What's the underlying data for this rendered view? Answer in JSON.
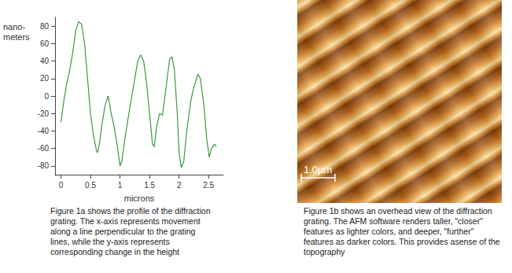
{
  "chart_data": {
    "type": "line",
    "ylabel": "nano-\nmeters",
    "xlabel": "microns",
    "x": [
      0,
      0.05,
      0.1,
      0.15,
      0.2,
      0.25,
      0.3,
      0.35,
      0.4,
      0.45,
      0.5,
      0.55,
      0.6,
      0.62,
      0.65,
      0.7,
      0.75,
      0.8,
      0.85,
      0.9,
      0.95,
      1.0,
      1.03,
      1.08,
      1.15,
      1.2,
      1.25,
      1.3,
      1.35,
      1.4,
      1.45,
      1.5,
      1.55,
      1.58,
      1.62,
      1.67,
      1.72,
      1.78,
      1.84,
      1.88,
      1.92,
      1.97,
      2.0,
      2.04,
      2.08,
      2.13,
      2.2,
      2.25,
      2.32,
      2.36,
      2.42,
      2.47,
      2.51,
      2.55,
      2.6,
      2.63
    ],
    "values": [
      -30,
      -5,
      15,
      30,
      50,
      75,
      85,
      82,
      60,
      20,
      -20,
      -45,
      -62,
      -65,
      -55,
      -30,
      -10,
      0,
      -20,
      -35,
      -55,
      -80,
      -75,
      -50,
      -20,
      0,
      20,
      40,
      47,
      40,
      15,
      -20,
      -55,
      -58,
      -35,
      -20,
      -22,
      10,
      42,
      45,
      30,
      -20,
      -65,
      -82,
      -75,
      -40,
      -5,
      10,
      25,
      20,
      -10,
      -50,
      -70,
      -60,
      -55,
      -58
    ],
    "color": "#3c9a3c",
    "xlim": [
      -0.1,
      2.75
    ],
    "xticks": [
      0,
      0.5,
      1,
      1.5,
      2,
      2.5
    ],
    "ylim": [
      -90,
      90
    ],
    "yticks": [
      -80,
      -60,
      -40,
      -20,
      0,
      20,
      40,
      60,
      80
    ],
    "grid": false
  },
  "captions": {
    "figure_1a": [
      "Figure 1a shows the profile of the diffraction",
      "grating. The x-axis represents movement",
      "along a line perpendicular to the grating",
      "lines, while the y-axis represents",
      "corresponding change in the height"
    ],
    "figure_1b": [
      "Figure 1b shows an overhead view of the diffraction",
      "grating. The AFM software renders taller, \"closer\"",
      "features as lighter colors, and deeper, \"further\"",
      "features as darker colors. This provides asense of the",
      "topography"
    ]
  },
  "figure_1b": {
    "scale_bar": "1.0µm"
  }
}
